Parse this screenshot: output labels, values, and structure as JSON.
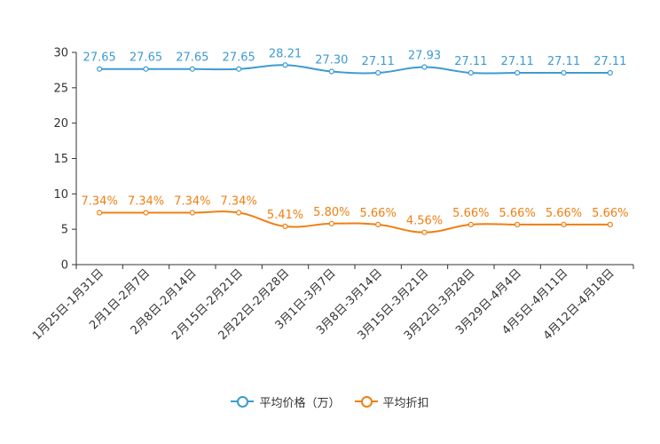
{
  "chart_data": {
    "type": "line",
    "title": "",
    "xlabel": "",
    "ylabel": "",
    "ylim": [
      0,
      30
    ],
    "yticks": [
      0,
      5,
      10,
      15,
      20,
      25,
      30
    ],
    "grid": false,
    "legend_position": "bottom-center",
    "categories": [
      "1月25日-1月31日",
      "2月1日-2月7日",
      "2月8日-2月14日",
      "2月15日-2月21日",
      "2月22日-2月28日",
      "3月1日-3月7日",
      "3月8日-3月14日",
      "3月15日-3月21日",
      "3月22日-3月28日",
      "3月29日-4月4日",
      "4月5日-4月11日",
      "4月12日-4月18日"
    ],
    "series": [
      {
        "name": "平均价格（万）",
        "color": "#3d9bd3",
        "values": [
          27.65,
          27.65,
          27.65,
          27.65,
          28.21,
          27.3,
          27.11,
          27.93,
          27.11,
          27.11,
          27.11,
          27.11
        ],
        "labels": [
          "27.65",
          "27.65",
          "27.65",
          "27.65",
          "28.21",
          "27.30",
          "27.11",
          "27.93",
          "27.11",
          "27.11",
          "27.11",
          "27.11"
        ]
      },
      {
        "name": "平均折扣",
        "color": "#f07f12",
        "values": [
          7.34,
          7.34,
          7.34,
          7.34,
          5.41,
          5.8,
          5.66,
          4.56,
          5.66,
          5.66,
          5.66,
          5.66
        ],
        "labels": [
          "7.34%",
          "7.34%",
          "7.34%",
          "7.34%",
          "5.41%",
          "5.80%",
          "5.66%",
          "4.56%",
          "5.66%",
          "5.66%",
          "5.66%",
          "5.66%"
        ]
      }
    ]
  }
}
